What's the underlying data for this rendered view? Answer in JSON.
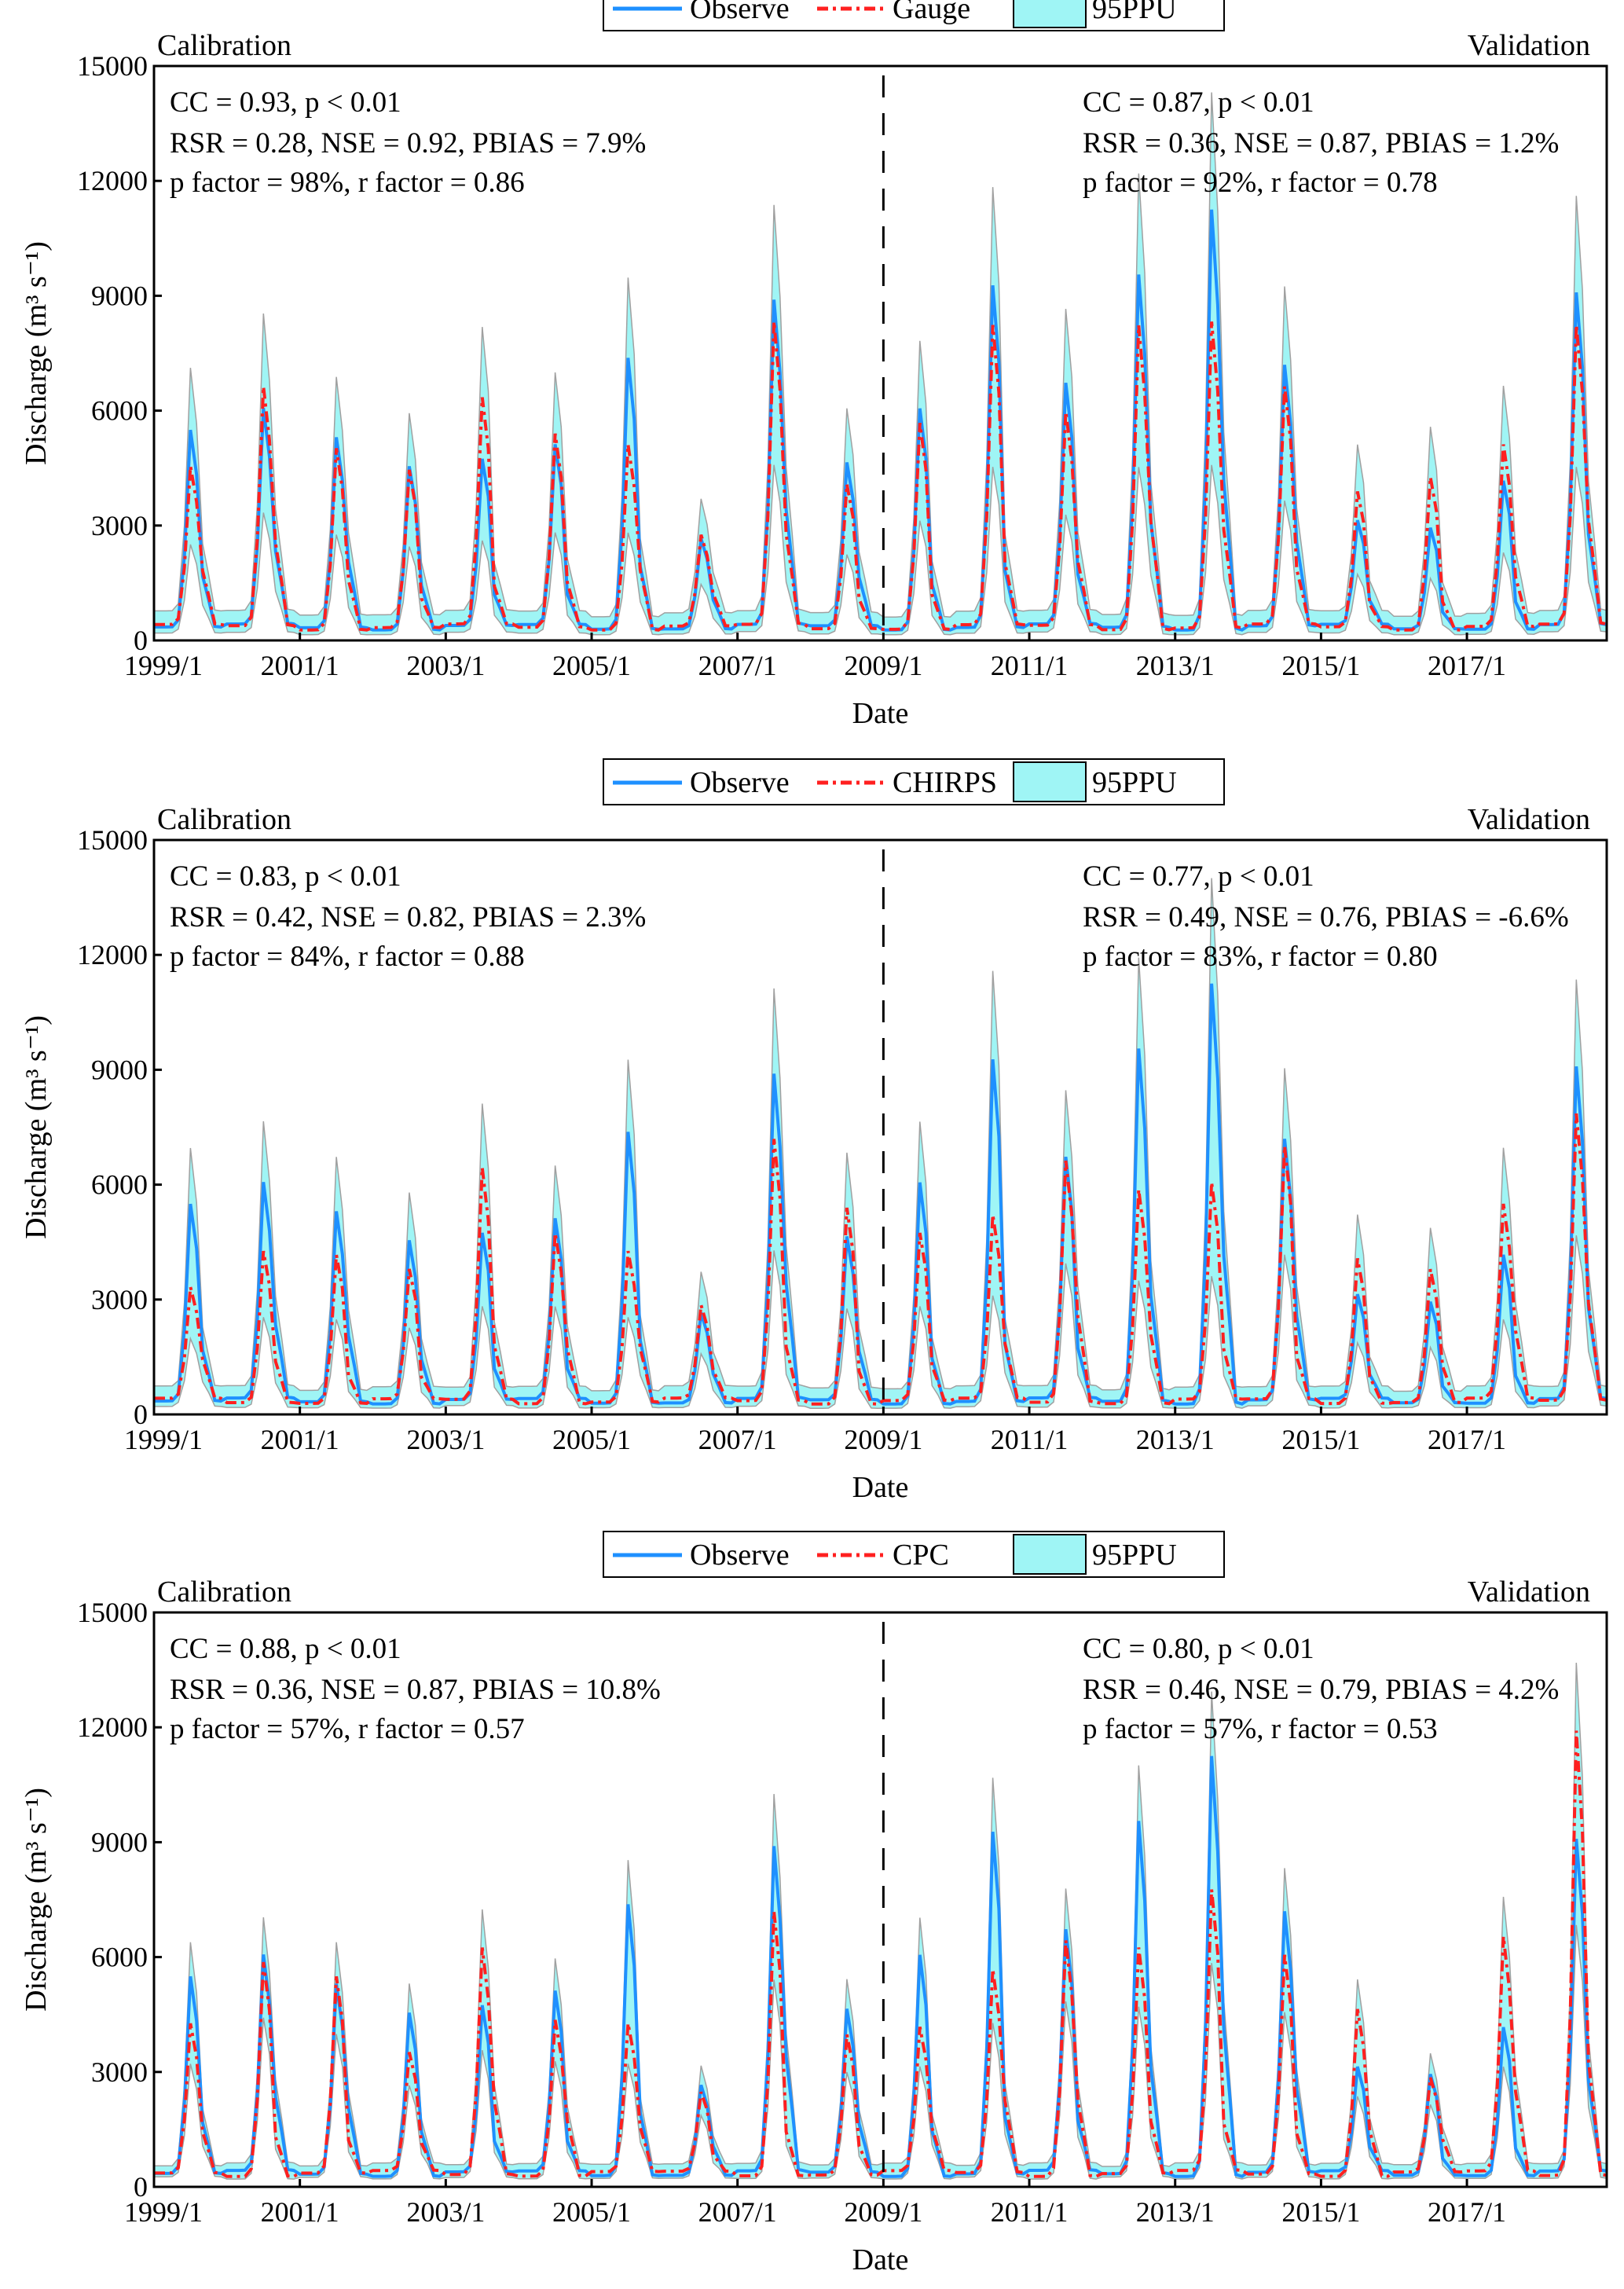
{
  "chart_data": {
    "type": "line",
    "x_start": "1999/1",
    "x_end": "2018/12",
    "x_ticks": [
      "1999/1",
      "2001/1",
      "2003/1",
      "2005/1",
      "2007/1",
      "2009/1",
      "2011/1",
      "2013/1",
      "2015/1",
      "2017/1"
    ],
    "y_ticks": [
      "0",
      "3000",
      "6000",
      "9000",
      "12000",
      "15000"
    ],
    "ylim": [
      0,
      15000
    ],
    "xlabel": "Date",
    "ylabel": "Discharge (m³ s⁻¹)",
    "split_date": "2009/1",
    "years": [
      1999,
      2000,
      2001,
      2002,
      2003,
      2004,
      2005,
      2006,
      2007,
      2008,
      2009,
      2010,
      2011,
      2012,
      2013,
      2014,
      2015,
      2016,
      2017,
      2018
    ],
    "observed_annual_peaks": [
      5800,
      6400,
      5600,
      4800,
      5000,
      5400,
      7800,
      2800,
      9400,
      4900,
      6400,
      9800,
      7100,
      10100,
      11900,
      7600,
      3300,
      3100,
      4400,
      9600
    ],
    "colors": {
      "observe": "#1e90ff",
      "sim": "#ff2020",
      "band": "#9ff5f5",
      "band_edge": "#a0a0a0"
    },
    "panels": [
      {
        "legend": [
          "Observe",
          "Gauge",
          "95PPU"
        ],
        "calibration_label": "Calibration",
        "validation_label": "Validation",
        "calibration_stats": [
          "CC = 0.93,  p < 0.01",
          "RSR =  0.28, NSE = 0.92, PBIAS = 7.9%",
          "p factor = 98%, r factor = 0.86"
        ],
        "validation_stats": [
          "CC = 0.87,  p < 0.01",
          "RSR = 0.36, NSE = 0.87, PBIAS = 1.2%",
          "p factor = 92%, r factor = 0.78"
        ],
        "simulated_annual_peaks": [
          4800,
          7000,
          5300,
          4700,
          6700,
          5700,
          5400,
          2900,
          8800,
          4300,
          6000,
          8700,
          6300,
          8700,
          8800,
          7000,
          4100,
          4500,
          5400,
          8700
        ],
        "band_width_factor": 1.0
      },
      {
        "legend": [
          "Observe",
          "CHIRPS",
          "95PPU"
        ],
        "calibration_label": "Calibration",
        "validation_label": "Validation",
        "calibration_stats": [
          "CC = 0.83,  p < 0.01",
          "RSR = 0.42, NSE = 0.82, PBIAS = 2.3%",
          "p factor = 84%, r factor = 0.88"
        ],
        "validation_stats": [
          "CC = 0.77,  p < 0.01",
          "RSR = 0.49, NSE = 0.76, PBIAS = -6.6%",
          "p factor = 83%, r factor = 0.80"
        ],
        "simulated_annual_peaks": [
          3500,
          4500,
          4400,
          4000,
          6800,
          5000,
          4500,
          3000,
          7600,
          5700,
          5000,
          5500,
          7000,
          6200,
          6400,
          7400,
          4300,
          4000,
          5800,
          8300
        ],
        "band_width_factor": 0.9
      },
      {
        "legend": [
          "Observe",
          "CPC",
          "95PPU"
        ],
        "calibration_label": "Calibration",
        "validation_label": "Validation",
        "calibration_stats": [
          "CC = 0.88,  p < 0.01",
          "RSR = 0.36, NSE = 0.87, PBIAS = 10.8%",
          "p factor = 57%, r factor = 0.57"
        ],
        "validation_stats": [
          "CC = 0.80,  p < 0.01",
          "RSR = 0.46, NSE = 0.79, PBIAS = 4.2%",
          "p factor = 57%, r factor = 0.53"
        ],
        "simulated_annual_peaks": [
          4500,
          6200,
          5800,
          3700,
          6600,
          4600,
          4500,
          2600,
          7600,
          4200,
          4400,
          6000,
          6800,
          6600,
          8200,
          6400,
          4900,
          3000,
          6900,
          12600
        ],
        "band_width_factor": 0.55
      }
    ]
  }
}
